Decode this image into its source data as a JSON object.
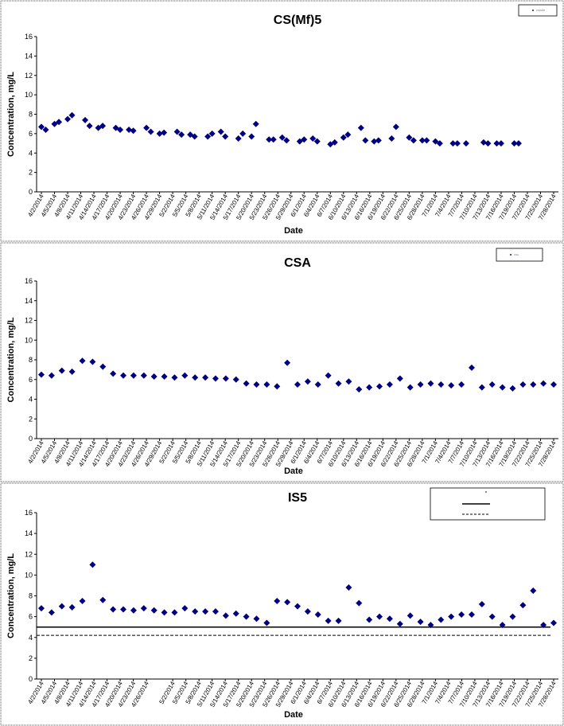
{
  "chart_data": [
    {
      "type": "scatter",
      "title": "CS(Mf)5",
      "xlabel": "Date",
      "ylabel": "Concentration, mg/L",
      "ylim": [
        0,
        16
      ],
      "yticks": [
        "0",
        "2",
        "4",
        "6",
        "8",
        "10",
        "12",
        "14",
        "16"
      ],
      "xticks": [
        "4/2/2014",
        "4/5/2014",
        "4/8/2014",
        "4/11/2014",
        "4/14/2014",
        "4/17/2014",
        "4/20/2014",
        "4/23/2014",
        "4/26/2014",
        "4/29/2014",
        "5/2/2014",
        "5/5/2014",
        "5/8/2014",
        "5/11/2014",
        "5/14/2014",
        "5/17/2014",
        "5/20/2014",
        "5/23/2014",
        "5/26/2014",
        "5/29/2014",
        "6/1/2014",
        "6/4/2014",
        "6/7/2014",
        "6/10/2014",
        "6/13/2014",
        "6/16/2014",
        "6/19/2014",
        "6/22/2014",
        "6/25/2014",
        "6/28/2014",
        "7/1/2014",
        "7/4/2014",
        "7/7/2014",
        "7/10/2014",
        "7/13/2014",
        "7/16/2014",
        "7/19/2014",
        "7/22/2014",
        "7/25/2014",
        "7/28/2014"
      ],
      "grid": false,
      "legend": "top-right",
      "legend_entries": [
        "CS(Mf)5"
      ],
      "series": [
        {
          "x": [
            "4/2/2014",
            "4/3/2014",
            "4/5/2014",
            "4/6/2014",
            "4/8/2014",
            "4/9/2014",
            "4/12/2014",
            "4/13/2014",
            "4/15/2014",
            "4/16/2014",
            "4/19/2014",
            "4/20/2014",
            "4/22/2014",
            "4/23/2014",
            "4/26/2014",
            "4/27/2014",
            "4/29/2014",
            "4/30/2014",
            "5/3/2014",
            "5/4/2014",
            "5/6/2014",
            "5/7/2014",
            "5/10/2014",
            "5/11/2014",
            "5/13/2014",
            "5/14/2014",
            "5/17/2014",
            "5/18/2014",
            "5/20/2014",
            "5/21/2014",
            "5/24/2014",
            "5/25/2014",
            "5/27/2014",
            "5/28/2014",
            "5/31/2014",
            "6/1/2014",
            "6/3/2014",
            "6/4/2014",
            "6/7/2014",
            "6/8/2014",
            "6/10/2014",
            "6/11/2014",
            "6/14/2014",
            "6/15/2014",
            "6/17/2014",
            "6/18/2014",
            "6/21/2014",
            "6/22/2014",
            "6/25/2014",
            "6/26/2014",
            "6/28/2014",
            "6/29/2014",
            "7/1/2014",
            "7/2/2014",
            "7/5/2014",
            "7/6/2014",
            "7/8/2014",
            "7/12/2014",
            "7/13/2014",
            "7/15/2014",
            "7/16/2014",
            "7/19/2014",
            "7/20/2014"
          ],
          "y": [
            6.7,
            6.4,
            7.0,
            7.2,
            7.5,
            7.9,
            7.4,
            6.8,
            6.6,
            6.8,
            6.6,
            6.4,
            6.4,
            6.3,
            6.6,
            6.2,
            6.0,
            6.1,
            6.2,
            5.9,
            5.9,
            5.7,
            5.7,
            6.0,
            6.2,
            5.7,
            5.5,
            6.0,
            5.7,
            7.0,
            5.4,
            5.4,
            5.6,
            5.3,
            5.2,
            5.4,
            5.5,
            5.2,
            4.9,
            5.1,
            5.6,
            5.9,
            6.6,
            5.3,
            5.2,
            5.3,
            5.5,
            6.7,
            5.6,
            5.3,
            5.3,
            5.3,
            5.2,
            5.0,
            5.0,
            5.0,
            5.0,
            5.1,
            5.0,
            5.0,
            5.0,
            5.0,
            5.0
          ]
        }
      ]
    },
    {
      "type": "scatter",
      "title": "CSA",
      "xlabel": "Date",
      "ylabel": "Concentration, mg/L",
      "ylim": [
        0,
        16
      ],
      "yticks": [
        "0",
        "2",
        "4",
        "6",
        "8",
        "10",
        "12",
        "14",
        "16"
      ],
      "xticks": [
        "4/2/2014",
        "4/5/2014",
        "4/8/2014",
        "4/11/2014",
        "4/14/2014",
        "4/17/2014",
        "4/20/2014",
        "4/23/2014",
        "4/26/2014",
        "4/29/2014",
        "5/2/2014",
        "5/5/2014",
        "5/8/2014",
        "5/11/2014",
        "5/14/2014",
        "5/17/2014",
        "5/20/2014",
        "5/23/2014",
        "5/26/2014",
        "5/29/2014",
        "6/1/2014",
        "6/4/2014",
        "6/7/2014",
        "6/10/2014",
        "6/13/2014",
        "6/16/2014",
        "6/19/2014",
        "6/22/2014",
        "6/25/2014",
        "6/28/2014",
        "7/1/2014",
        "7/4/2014",
        "7/7/2014",
        "7/10/2014",
        "7/13/2014",
        "7/16/2014",
        "7/19/2014",
        "7/22/2014",
        "7/25/2014",
        "7/28/2014"
      ],
      "grid": false,
      "legend": "top-right",
      "legend_entries": [
        "CSA"
      ],
      "series": [
        {
          "y": [
            6.5,
            6.4,
            6.9,
            6.8,
            7.9,
            7.8,
            7.3,
            6.6,
            6.4,
            6.4,
            6.4,
            6.3,
            6.3,
            6.2,
            6.4,
            6.2,
            6.2,
            6.1,
            6.1,
            6.0,
            5.6,
            5.5,
            5.5,
            5.3,
            7.7,
            5.5,
            5.8,
            5.5,
            6.4,
            5.6,
            5.8,
            5.0,
            5.2,
            5.3,
            5.5,
            6.1,
            5.2,
            5.5,
            5.6,
            5.5,
            5.4,
            5.5,
            7.2,
            5.2,
            5.5,
            5.2,
            5.1,
            5.5,
            5.5,
            5.6,
            5.5
          ]
        }
      ]
    },
    {
      "type": "scatter",
      "title": "IS5",
      "xlabel": "Date",
      "ylabel": "Concentration, mg/L",
      "ylim": [
        0,
        16
      ],
      "yticks": [
        "0",
        "2",
        "4",
        "6",
        "8",
        "10",
        "12",
        "14",
        "16"
      ],
      "xticks": [
        "4/2/2014",
        "4/5/2014",
        "4/8/2014",
        "4/11/2014",
        "4/14/2014",
        "4/17/2014",
        "4/20/2014",
        "4/23/2014",
        "4/26/2014",
        "5/2/2014",
        "5/5/2014",
        "5/8/2014",
        "5/11/2014",
        "5/14/2014",
        "5/17/2014",
        "5/20/2014",
        "5/23/2014",
        "5/26/2014",
        "5/29/2014",
        "6/1/2014",
        "6/4/2014",
        "6/7/2014",
        "6/10/2014",
        "6/13/2014",
        "6/16/2014",
        "6/19/2014",
        "6/22/2014",
        "6/25/2014",
        "6/28/2014",
        "7/1/2014",
        "7/4/2014",
        "7/7/2014",
        "7/10/2014",
        "7/13/2014",
        "7/16/2014",
        "7/19/2014",
        "7/22/2014",
        "7/25/2014",
        "7/28/2014"
      ],
      "grid": false,
      "legend": "top-right",
      "reference_lines": [
        {
          "y": 5.0,
          "style": "solid"
        },
        {
          "y": 4.2,
          "style": "dashed"
        }
      ],
      "series": [
        {
          "y": [
            6.8,
            6.4,
            7.0,
            6.9,
            7.5,
            11.0,
            7.6,
            6.7,
            6.7,
            6.6,
            6.8,
            6.6,
            6.4,
            6.4,
            6.8,
            6.5,
            6.5,
            6.5,
            6.1,
            6.3,
            6.0,
            5.8,
            5.4,
            7.5,
            7.4,
            7.0,
            6.5,
            6.2,
            5.6,
            5.6,
            8.8,
            7.3,
            5.7,
            6.0,
            5.8,
            5.3,
            6.1,
            5.5,
            5.2,
            5.7,
            6.0,
            6.2,
            6.2,
            7.2,
            6.0,
            5.2,
            6.0,
            7.1,
            8.5,
            5.2,
            5.4
          ]
        }
      ]
    }
  ]
}
